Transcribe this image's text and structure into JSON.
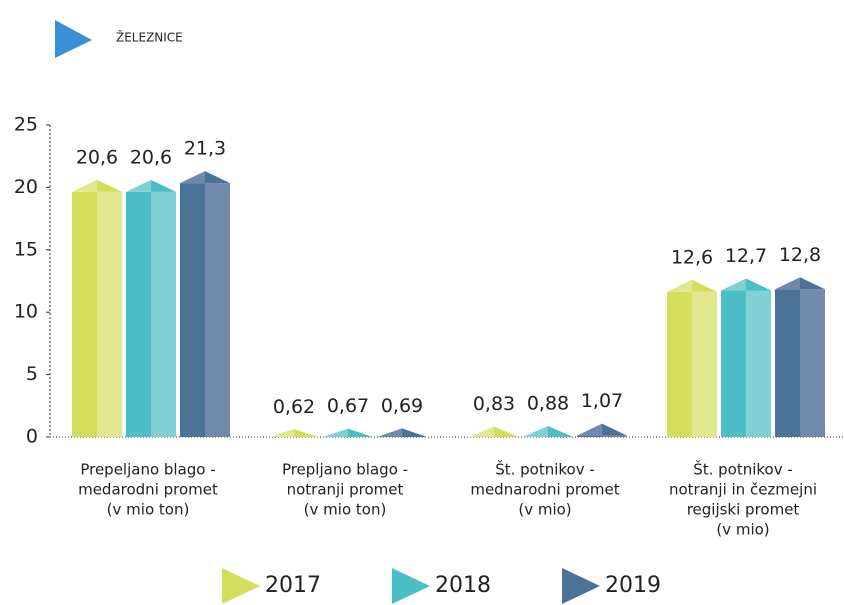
{
  "chart_data": {
    "type": "bar",
    "title": "ŽELEZNICE",
    "categories": [
      [
        "Prepeljano blago -",
        "medarodni promet",
        "(v mio ton)"
      ],
      [
        "Prepljano blago -",
        "notranji promet",
        "(v mio ton)"
      ],
      [
        "Št. potnikov -",
        "mednarodni promet",
        "(v mio)"
      ],
      [
        "Št. potnikov -",
        "notranji in čezmejni",
        "regijski promet",
        "(v mio)"
      ]
    ],
    "series": [
      {
        "name": "2017",
        "color": "#d3df5c",
        "light": "#e1e78d",
        "values": [
          20.6,
          0.62,
          0.83,
          12.6
        ],
        "value_labels": [
          "20,6",
          "0,62",
          "0,83",
          "12,6"
        ]
      },
      {
        "name": "2018",
        "color": "#4cbfc6",
        "light": "#80d0d4",
        "values": [
          20.6,
          0.67,
          0.88,
          12.7
        ],
        "value_labels": [
          "20,6",
          "0,67",
          "0,88",
          "12,7"
        ]
      },
      {
        "name": "2019",
        "color": "#4b7398",
        "light": "#7189ad",
        "values": [
          21.3,
          0.69,
          1.07,
          12.8
        ],
        "value_labels": [
          "21,3",
          "0,69",
          "1,07",
          "12,8"
        ]
      }
    ],
    "ylim": [
      0,
      25
    ],
    "yticks": [
      0,
      5,
      10,
      15,
      20,
      25
    ],
    "grid": false
  }
}
